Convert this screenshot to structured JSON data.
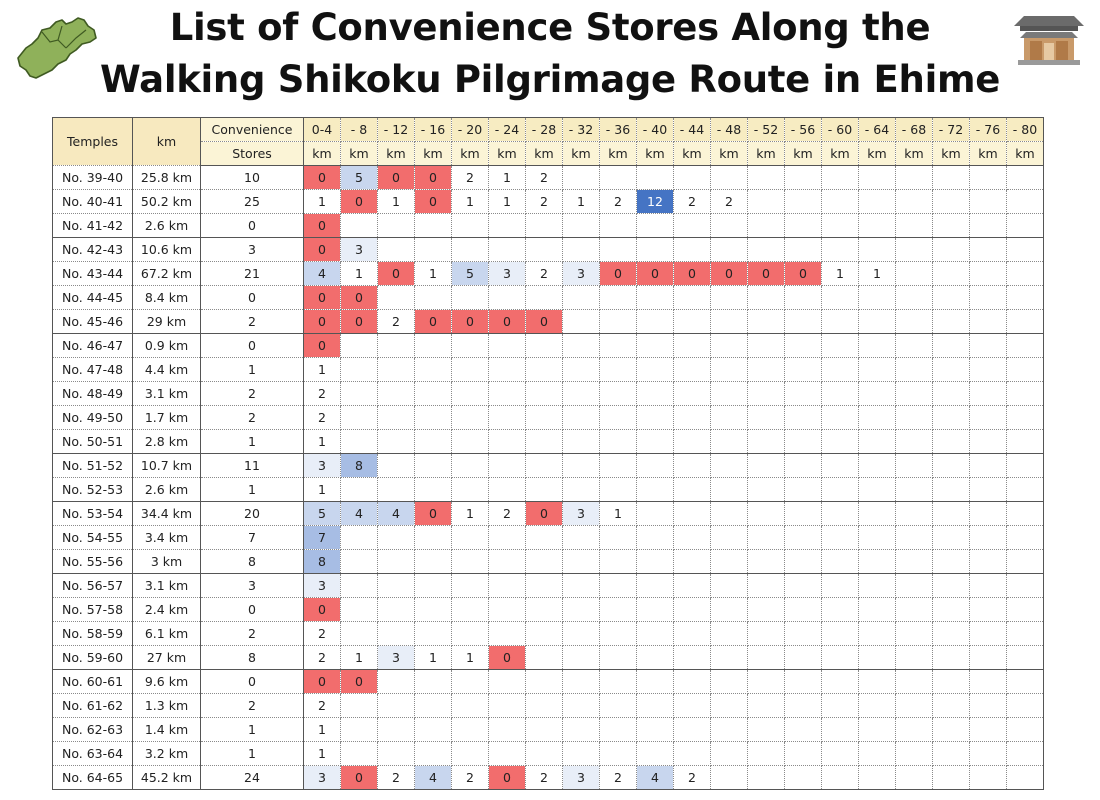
{
  "title": {
    "line1": "List of Convenience Stores Along the",
    "line2": "Walking Shikoku Pilgrimage Route  in Ehime"
  },
  "icons": {
    "left": "shikoku-map-icon",
    "right": "temple-icon"
  },
  "colors": {
    "zero": "#f26d6d",
    "max": "#4574c4",
    "header": "#f7ecc2"
  },
  "table": {
    "headers": {
      "temples": "Temples",
      "km": "km",
      "stores_line1": "Convenience",
      "stores_line2": "Stores",
      "segments": [
        "0-4",
        "- 8",
        "- 12",
        "- 16",
        "- 20",
        "- 24",
        "- 28",
        "- 32",
        "- 36",
        "- 40",
        "- 44",
        "- 48",
        "- 52",
        "- 56",
        "- 60",
        "- 64",
        "- 68",
        "- 72",
        "- 76",
        "- 80"
      ],
      "segment_unit": "km"
    },
    "rows": [
      {
        "temple": "No. 39-40",
        "km": "25.8 km",
        "stores": "10",
        "segments": [
          "0",
          "5",
          "0",
          "0",
          "2",
          "1",
          "2"
        ]
      },
      {
        "temple": "No. 40-41",
        "km": "50.2 km",
        "stores": "25",
        "segments": [
          "1",
          "0",
          "1",
          "0",
          "1",
          "1",
          "2",
          "1",
          "2",
          "12",
          "2",
          "2"
        ]
      },
      {
        "temple": "No. 41-42",
        "km": "2.6 km",
        "stores": "0",
        "segments": [
          "0"
        ]
      },
      {
        "temple": "No. 42-43",
        "km": "10.6 km",
        "stores": "3",
        "segments": [
          "0",
          "3"
        ]
      },
      {
        "temple": "No. 43-44",
        "km": "67.2 km",
        "stores": "21",
        "segments": [
          "4",
          "1",
          "0",
          "1",
          "5",
          "3",
          "2",
          "3",
          "0",
          "0",
          "0",
          "0",
          "0",
          "0",
          "1",
          "1"
        ]
      },
      {
        "temple": "No. 44-45",
        "km": "8.4 km",
        "stores": "0",
        "segments": [
          "0",
          "0"
        ]
      },
      {
        "temple": "No. 45-46",
        "km": "29 km",
        "stores": "2",
        "segments": [
          "0",
          "0",
          "2",
          "0",
          "0",
          "0",
          "0"
        ]
      },
      {
        "temple": "No. 46-47",
        "km": "0.9 km",
        "stores": "0",
        "segments": [
          "0"
        ]
      },
      {
        "temple": "No. 47-48",
        "km": "4.4 km",
        "stores": "1",
        "segments": [
          "1"
        ]
      },
      {
        "temple": "No. 48-49",
        "km": "3.1 km",
        "stores": "2",
        "segments": [
          "2"
        ]
      },
      {
        "temple": "No. 49-50",
        "km": "1.7 km",
        "stores": "2",
        "segments": [
          "2"
        ]
      },
      {
        "temple": "No. 50-51",
        "km": "2.8 km",
        "stores": "1",
        "segments": [
          "1"
        ]
      },
      {
        "temple": "No. 51-52",
        "km": "10.7 km",
        "stores": "11",
        "segments": [
          "3",
          "8"
        ]
      },
      {
        "temple": "No. 52-53",
        "km": "2.6 km",
        "stores": "1",
        "segments": [
          "1"
        ]
      },
      {
        "temple": "No. 53-54",
        "km": "34.4 km",
        "stores": "20",
        "segments": [
          "5",
          "4",
          "4",
          "0",
          "1",
          "2",
          "0",
          "3",
          "1"
        ]
      },
      {
        "temple": "No. 54-55",
        "km": "3.4 km",
        "stores": "7",
        "segments": [
          "7"
        ]
      },
      {
        "temple": "No. 55-56",
        "km": "3 km",
        "stores": "8",
        "segments": [
          "8"
        ]
      },
      {
        "temple": "No. 56-57",
        "km": "3.1 km",
        "stores": "3",
        "segments": [
          "3"
        ]
      },
      {
        "temple": "No. 57-58",
        "km": "2.4 km",
        "stores": "0",
        "segments": [
          "0"
        ]
      },
      {
        "temple": "No. 58-59",
        "km": "6.1 km",
        "stores": "2",
        "segments": [
          "2"
        ]
      },
      {
        "temple": "No. 59-60",
        "km": "27 km",
        "stores": "8",
        "segments": [
          "2",
          "1",
          "3",
          "1",
          "1",
          "0"
        ]
      },
      {
        "temple": "No. 60-61",
        "km": "9.6 km",
        "stores": "0",
        "segments": [
          "0",
          "0"
        ]
      },
      {
        "temple": "No. 61-62",
        "km": "1.3 km",
        "stores": "2",
        "segments": [
          "2"
        ]
      },
      {
        "temple": "No. 62-63",
        "km": "1.4 km",
        "stores": "1",
        "segments": [
          "1"
        ]
      },
      {
        "temple": "No. 63-64",
        "km": "3.2 km",
        "stores": "1",
        "segments": [
          "1"
        ]
      },
      {
        "temple": "No. 64-65",
        "km": "45.2 km",
        "stores": "24",
        "segments": [
          "3",
          "0",
          "2",
          "4",
          "2",
          "0",
          "2",
          "3",
          "2",
          "4",
          "2"
        ]
      }
    ]
  }
}
